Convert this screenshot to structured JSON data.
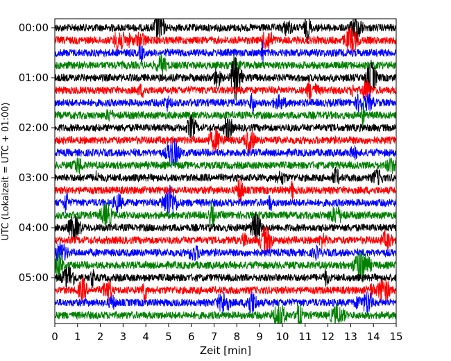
{
  "chart_data": {
    "type": "line",
    "title": "",
    "xlabel": "Zeit  [min]",
    "ylabel": "UTC (Lokalzeit = UTC + 01:00)",
    "xlim": [
      0,
      15
    ],
    "x_ticks": [
      "0",
      "1",
      "2",
      "3",
      "4",
      "5",
      "6",
      "7",
      "8",
      "9",
      "10",
      "11",
      "12",
      "13",
      "14",
      "15"
    ],
    "y_ticks": [
      "00:00",
      "01:00",
      "02:00",
      "03:00",
      "04:00",
      "05:00"
    ],
    "ylim_utc": [
      "00:00",
      "06:00"
    ],
    "trace_interval_min": 15,
    "trace_count": 24,
    "color_cycle": [
      "#000000",
      "#ff0000",
      "#0000ff",
      "#008000"
    ],
    "grid": false,
    "legend": "none"
  }
}
